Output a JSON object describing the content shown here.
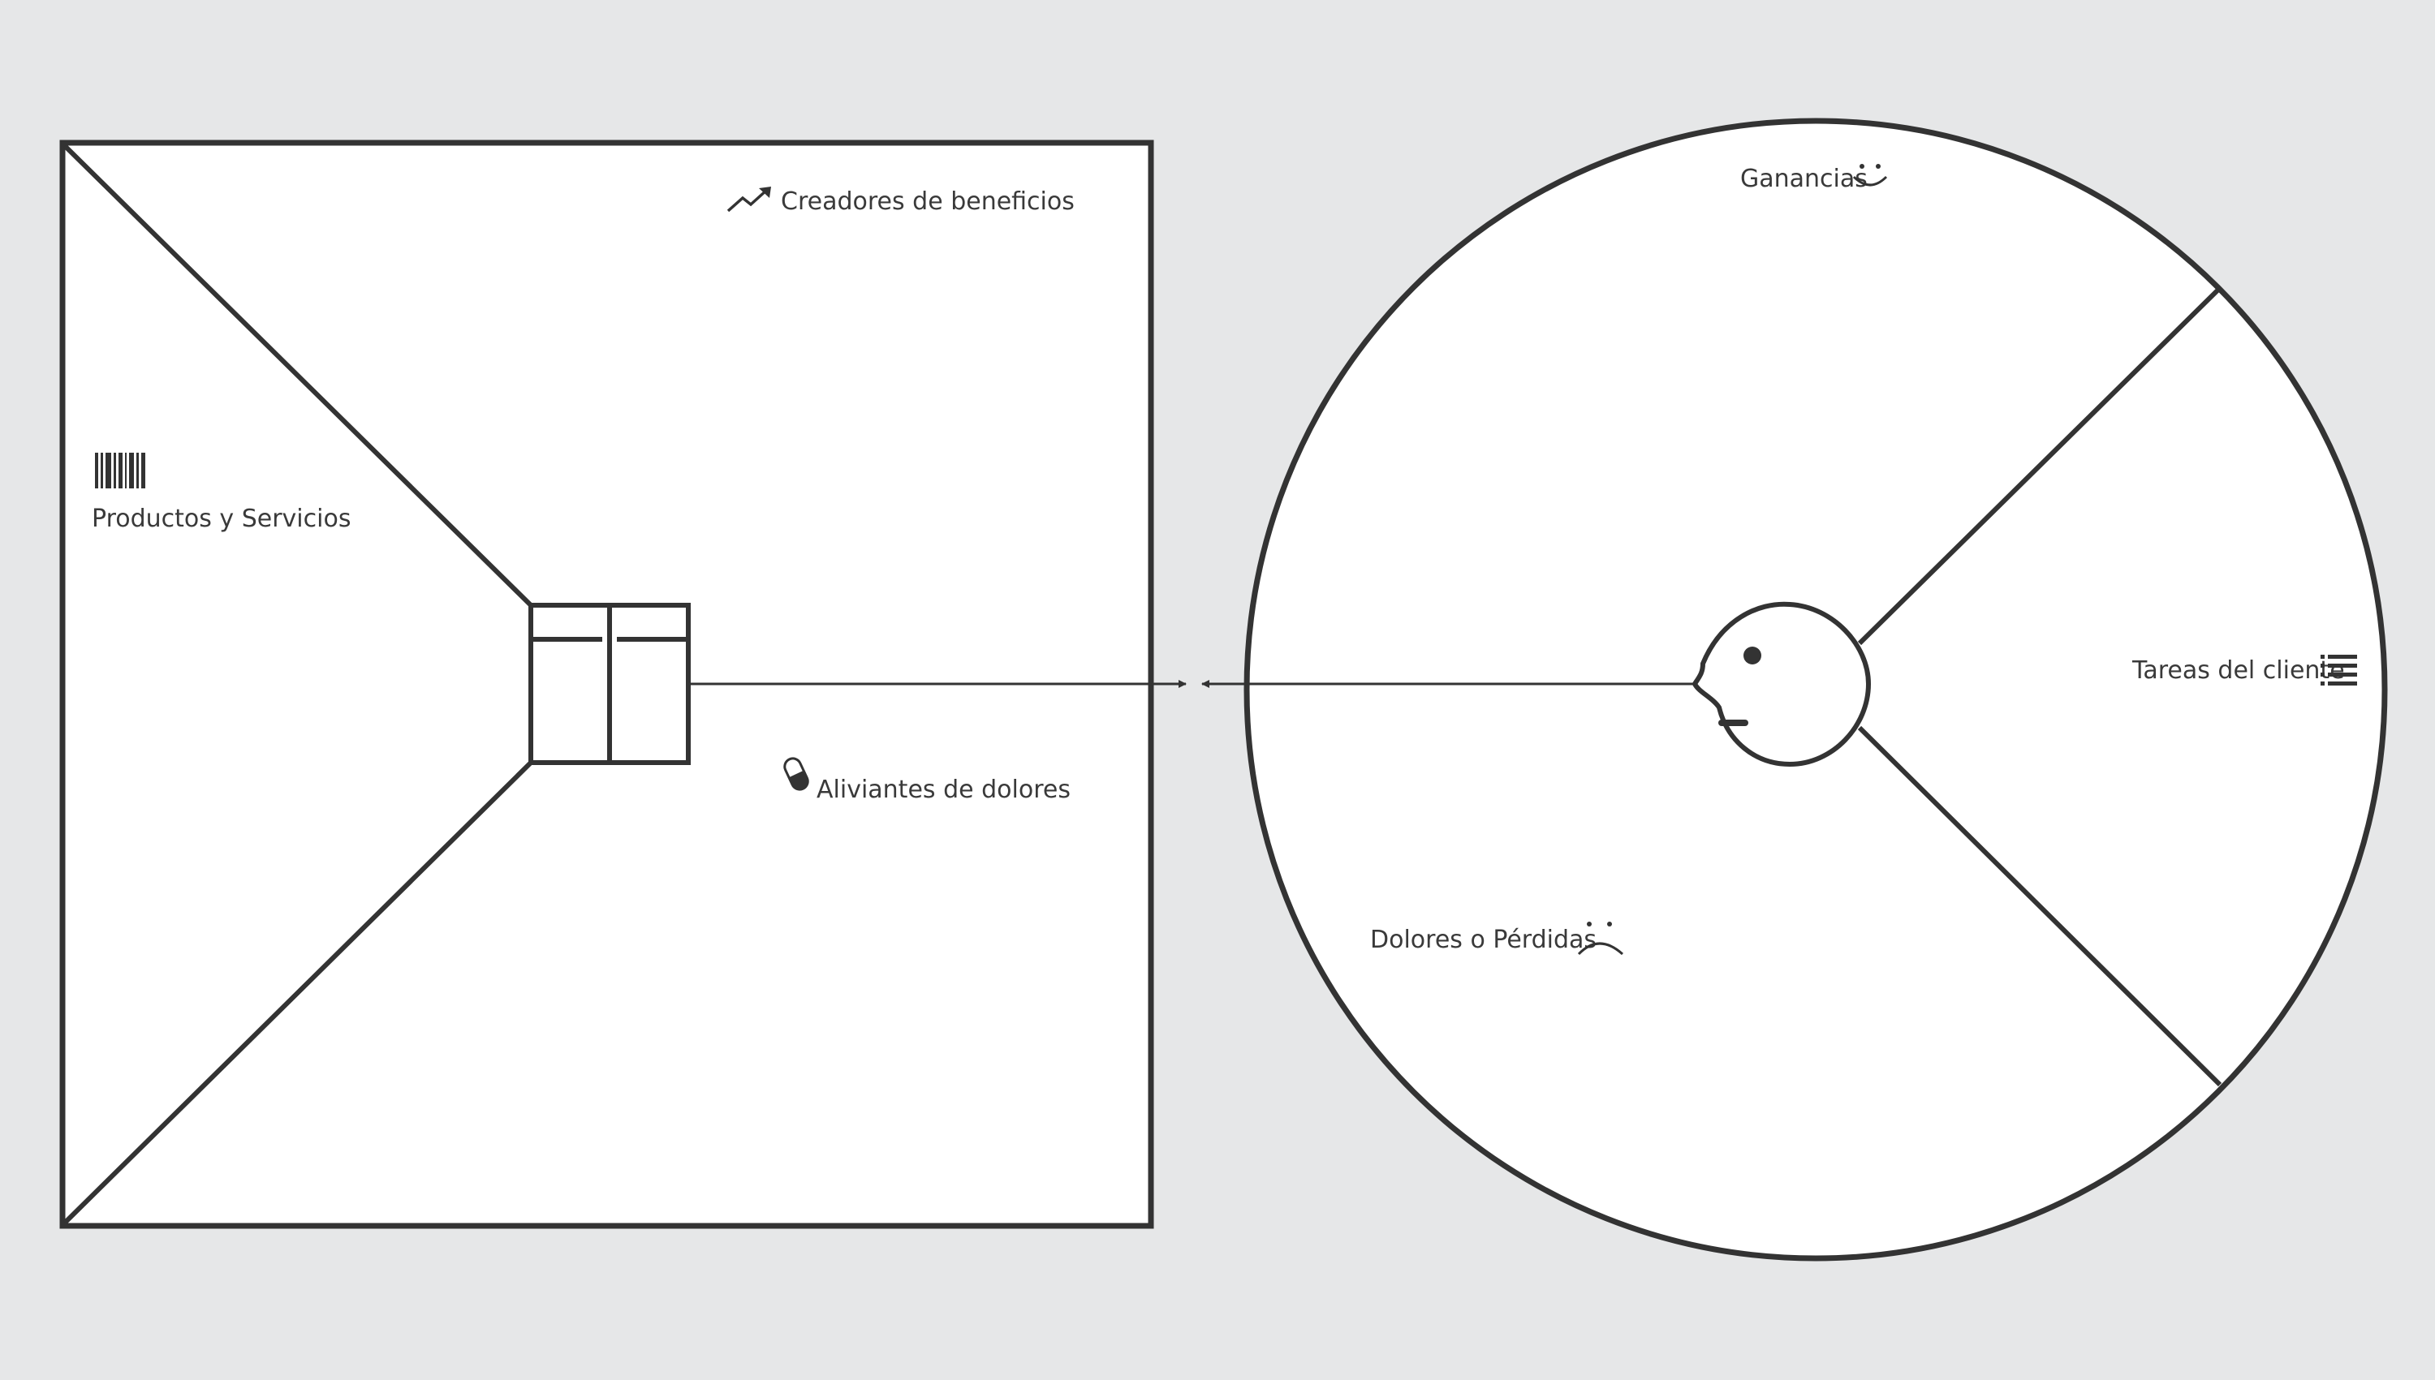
{
  "colors": {
    "background": "#e6e7e8",
    "panel": "#ffffff",
    "stroke": "#333333",
    "text": "#3a3a3a"
  },
  "value_map": {
    "gain_creators": {
      "label": "Creadores de beneficios",
      "icon": "trending-up-icon"
    },
    "products_services": {
      "label": "Productos y Servicios",
      "icon": "barcode-icon"
    },
    "pain_relievers": {
      "label": "Aliviantes de dolores",
      "icon": "pill-icon"
    },
    "center_icon": "gift-box-icon"
  },
  "customer_profile": {
    "gains": {
      "label": "Ganancias",
      "icon": "smile-icon"
    },
    "customer_jobs": {
      "label": "Tareas del cliente",
      "icon": "list-icon"
    },
    "pains": {
      "label": "Dolores o Pérdidas",
      "icon": "frown-icon"
    },
    "center_icon": "customer-head-icon"
  },
  "connector": "double-arrow-icon"
}
